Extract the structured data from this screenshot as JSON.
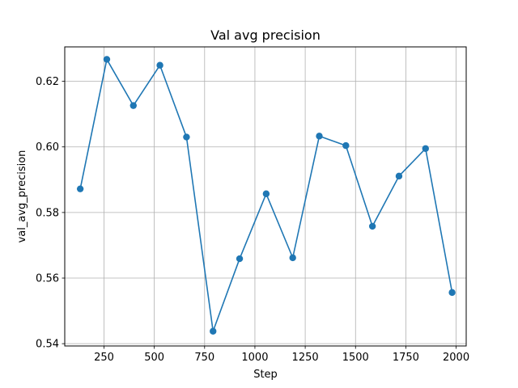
{
  "chart_data": {
    "type": "line",
    "title": "Val avg precision",
    "xlabel": "Step",
    "ylabel": "val_avg_precision",
    "grid": true,
    "xlim": [
      55,
      2050
    ],
    "ylim": [
      0.5393,
      0.6305
    ],
    "xticks": [
      250,
      500,
      750,
      1000,
      1250,
      1500,
      1750,
      2000
    ],
    "xtick_labels": [
      "250",
      "500",
      "750",
      "1000",
      "1250",
      "1500",
      "1750",
      "2000"
    ],
    "yticks": [
      0.54,
      0.56,
      0.58,
      0.6,
      0.62
    ],
    "ytick_labels": [
      "0.54",
      "0.56",
      "0.58",
      "0.60",
      "0.62"
    ],
    "series": [
      {
        "color": "#1f77b4",
        "marker": "circle",
        "x": [
          132,
          264,
          396,
          528,
          660,
          792,
          924,
          1056,
          1188,
          1320,
          1452,
          1584,
          1716,
          1848,
          1980
        ],
        "y": [
          0.5872,
          0.6267,
          0.6126,
          0.6249,
          0.603,
          0.5438,
          0.5659,
          0.5857,
          0.5662,
          0.6033,
          0.6004,
          0.5758,
          0.5911,
          0.5995,
          0.5556
        ]
      }
    ]
  }
}
